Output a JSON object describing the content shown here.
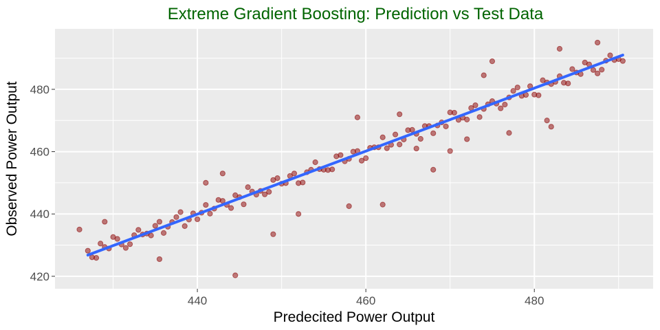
{
  "chart_data": {
    "type": "scatter",
    "title": "Extreme Gradient Boosting: Prediction vs Test Data",
    "xlabel": "Predecited Power Output",
    "ylabel": "Observed Power Output",
    "xlim": [
      423.1,
      494.1
    ],
    "ylim": [
      416,
      499.4
    ],
    "x_ticks": [
      440,
      460,
      480
    ],
    "y_ticks": [
      420,
      440,
      460,
      480
    ],
    "x_tick_labels": [
      "440",
      "460",
      "480"
    ],
    "y_tick_labels": [
      "420",
      "440",
      "460",
      "480"
    ],
    "grid": true,
    "colors": {
      "points": "#8B0000",
      "fit_line": "#3366FF",
      "title": "#006400",
      "panel": "#EBEBEB"
    },
    "fit_line": {
      "x": [
        427,
        490.5
      ],
      "y": [
        426.8,
        491
      ]
    },
    "points": [
      [
        427,
        428.2
      ],
      [
        428,
        425.9
      ],
      [
        429,
        429.4
      ],
      [
        430,
        432.6
      ],
      [
        431,
        430.2
      ],
      [
        432,
        430.3
      ],
      [
        433,
        434.9
      ],
      [
        434,
        433.7
      ],
      [
        435,
        436.2
      ],
      [
        436,
        433.9
      ],
      [
        437,
        437.4
      ],
      [
        438,
        440.6
      ],
      [
        439,
        438.2
      ],
      [
        440,
        438.3
      ],
      [
        441,
        442.9
      ],
      [
        442,
        441.7
      ],
      [
        443,
        444.2
      ],
      [
        444,
        441.9
      ],
      [
        445,
        445.4
      ],
      [
        446,
        448.6
      ],
      [
        447,
        446.2
      ],
      [
        448,
        446.3
      ],
      [
        449,
        450.9
      ],
      [
        450,
        449.7
      ],
      [
        451,
        452.2
      ],
      [
        452,
        449.9
      ],
      [
        453,
        453.4
      ],
      [
        454,
        456.6
      ],
      [
        455,
        454.2
      ],
      [
        456,
        454.3
      ],
      [
        457,
        458.9
      ],
      [
        458,
        457.7
      ],
      [
        459,
        460.2
      ],
      [
        460,
        457.9
      ],
      [
        461,
        461.4
      ],
      [
        462,
        464.6
      ],
      [
        463,
        462.2
      ],
      [
        464,
        462.3
      ],
      [
        465,
        466.9
      ],
      [
        466,
        465.7
      ],
      [
        467,
        468.2
      ],
      [
        468,
        465.9
      ],
      [
        469,
        469.4
      ],
      [
        470,
        472.6
      ],
      [
        471,
        470.2
      ],
      [
        472,
        470.3
      ],
      [
        473,
        474.9
      ],
      [
        474,
        473.7
      ],
      [
        475,
        476.2
      ],
      [
        476,
        473.9
      ],
      [
        477,
        477.4
      ],
      [
        478,
        480.6
      ],
      [
        479,
        478.2
      ],
      [
        480,
        478.3
      ],
      [
        481,
        482.9
      ],
      [
        482,
        481.7
      ],
      [
        483,
        484.2
      ],
      [
        484,
        481.9
      ],
      [
        485,
        485.4
      ],
      [
        486,
        488.6
      ],
      [
        487,
        486.2
      ],
      [
        488,
        486.3
      ],
      [
        489,
        490.9
      ],
      [
        490,
        489.7
      ],
      [
        427.5,
        426.1
      ],
      [
        428.5,
        430.5
      ],
      [
        429.5,
        428.9
      ],
      [
        430.5,
        432.0
      ],
      [
        431.5,
        429.1
      ],
      [
        432.5,
        433.2
      ],
      [
        433.5,
        433.4
      ],
      [
        434.5,
        433.1
      ],
      [
        435.5,
        437.5
      ],
      [
        436.5,
        435.9
      ],
      [
        437.5,
        439.0
      ],
      [
        438.5,
        436.1
      ],
      [
        439.5,
        440.2
      ],
      [
        440.5,
        440.4
      ],
      [
        441.5,
        440.1
      ],
      [
        442.5,
        444.5
      ],
      [
        443.5,
        442.9
      ],
      [
        444.5,
        446.0
      ],
      [
        445.5,
        443.1
      ],
      [
        446.5,
        447.2
      ],
      [
        447.5,
        447.4
      ],
      [
        448.5,
        447.1
      ],
      [
        449.5,
        451.5
      ],
      [
        450.5,
        449.9
      ],
      [
        451.5,
        453.0
      ],
      [
        452.5,
        450.1
      ],
      [
        453.5,
        454.2
      ],
      [
        454.5,
        454.4
      ],
      [
        455.5,
        454.1
      ],
      [
        456.5,
        458.5
      ],
      [
        457.5,
        456.9
      ],
      [
        458.5,
        460.0
      ],
      [
        459.5,
        457.1
      ],
      [
        460.5,
        461.2
      ],
      [
        461.5,
        461.4
      ],
      [
        462.5,
        461.1
      ],
      [
        463.5,
        465.5
      ],
      [
        464.5,
        463.9
      ],
      [
        465.5,
        467.0
      ],
      [
        466.5,
        464.1
      ],
      [
        467.5,
        468.2
      ],
      [
        468.5,
        468.4
      ],
      [
        469.5,
        468.1
      ],
      [
        470.5,
        472.5
      ],
      [
        471.5,
        470.9
      ],
      [
        472.5,
        474.0
      ],
      [
        473.5,
        471.1
      ],
      [
        474.5,
        475.2
      ],
      [
        475.5,
        475.4
      ],
      [
        476.5,
        475.1
      ],
      [
        477.5,
        479.5
      ],
      [
        478.5,
        477.9
      ],
      [
        479.5,
        481.0
      ],
      [
        480.5,
        478.1
      ],
      [
        481.5,
        482.2
      ],
      [
        482.5,
        482.4
      ],
      [
        483.5,
        482.1
      ],
      [
        484.5,
        486.5
      ],
      [
        485.5,
        484.9
      ],
      [
        486.5,
        488.0
      ],
      [
        487.5,
        485.1
      ],
      [
        488.5,
        489.2
      ],
      [
        489.5,
        489.4
      ],
      [
        490.5,
        489.1
      ],
      [
        444.5,
        420.3
      ],
      [
        458,
        442.5
      ],
      [
        435.5,
        425.5
      ],
      [
        481.5,
        470
      ],
      [
        482,
        468
      ],
      [
        477,
        466
      ],
      [
        468,
        454.2
      ],
      [
        470,
        460.2
      ],
      [
        474,
        484.5
      ],
      [
        475,
        489
      ],
      [
        487.5,
        495
      ],
      [
        483,
        493
      ],
      [
        459,
        471
      ],
      [
        464,
        472
      ],
      [
        449,
        433.5
      ],
      [
        429,
        437.5
      ],
      [
        426,
        435
      ],
      [
        443,
        453
      ],
      [
        441,
        450
      ],
      [
        462,
        443
      ],
      [
        452,
        440
      ],
      [
        466,
        461
      ],
      [
        472,
        464
      ]
    ]
  }
}
